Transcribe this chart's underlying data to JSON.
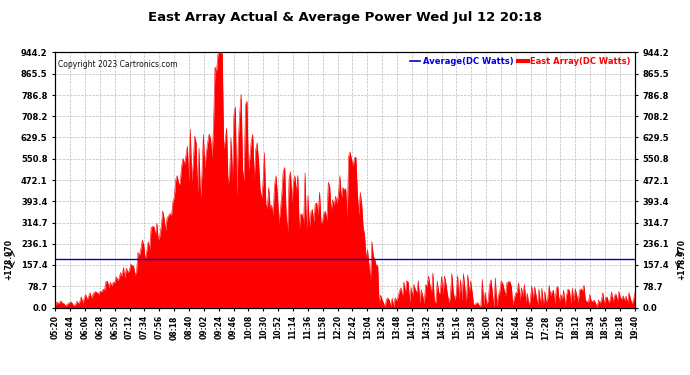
{
  "title": "East Array Actual & Average Power Wed Jul 12 20:18",
  "copyright": "Copyright 2023 Cartronics.com",
  "legend_avg": "Average(DC Watts)",
  "legend_east": "East Array(DC Watts)",
  "avg_value": 178.97,
  "ymax": 944.2,
  "ymin": 0.0,
  "yticks": [
    0.0,
    78.7,
    157.4,
    236.1,
    314.7,
    393.4,
    472.1,
    550.8,
    629.5,
    708.2,
    786.8,
    865.5,
    944.2
  ],
  "bg_color": "#ffffff",
  "grid_color": "#bbbbbb",
  "avg_line_color": "#0000dd",
  "fill_color": "#ff0000",
  "title_color": "#000000",
  "copyright_color": "#000000",
  "legend_avg_color": "#0000dd",
  "legend_east_color": "#ff0000",
  "xtick_labels": [
    "05:20",
    "05:44",
    "06:06",
    "06:28",
    "06:50",
    "07:12",
    "07:34",
    "07:56",
    "08:18",
    "08:40",
    "09:02",
    "09:24",
    "09:46",
    "10:08",
    "10:30",
    "10:52",
    "11:14",
    "11:36",
    "11:58",
    "12:20",
    "12:42",
    "13:04",
    "13:26",
    "13:48",
    "14:10",
    "14:32",
    "14:54",
    "15:16",
    "15:38",
    "16:00",
    "16:22",
    "16:44",
    "17:06",
    "17:28",
    "17:50",
    "18:12",
    "18:34",
    "18:56",
    "19:18",
    "19:40"
  ]
}
